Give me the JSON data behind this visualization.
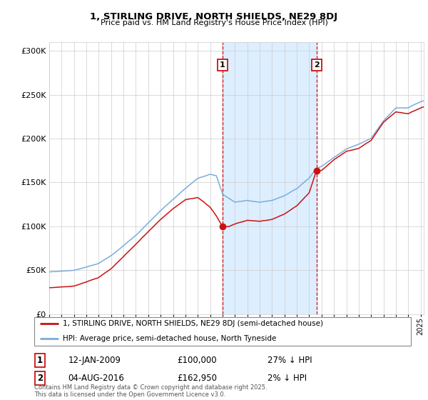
{
  "title": "1, STIRLING DRIVE, NORTH SHIELDS, NE29 8DJ",
  "subtitle": "Price paid vs. HM Land Registry's House Price Index (HPI)",
  "ylim": [
    0,
    310000
  ],
  "yticks": [
    0,
    50000,
    100000,
    150000,
    200000,
    250000,
    300000
  ],
  "ytick_labels": [
    "£0",
    "£50K",
    "£100K",
    "£150K",
    "£200K",
    "£250K",
    "£300K"
  ],
  "hpi_color": "#7aaddb",
  "price_color": "#cc1111",
  "marker1_label": "1",
  "marker2_label": "2",
  "sale1_date": "12-JAN-2009",
  "sale1_price": "£100,000",
  "sale1_note": "27% ↓ HPI",
  "sale2_date": "04-AUG-2016",
  "sale2_price": "£162,950",
  "sale2_note": "2% ↓ HPI",
  "legend_line1": "1, STIRLING DRIVE, NORTH SHIELDS, NE29 8DJ (semi-detached house)",
  "legend_line2": "HPI: Average price, semi-detached house, North Tyneside",
  "footer": "Contains HM Land Registry data © Crown copyright and database right 2025.\nThis data is licensed under the Open Government Licence v3.0.",
  "background_color": "#ffffff",
  "shade_color": "#ddeeff"
}
